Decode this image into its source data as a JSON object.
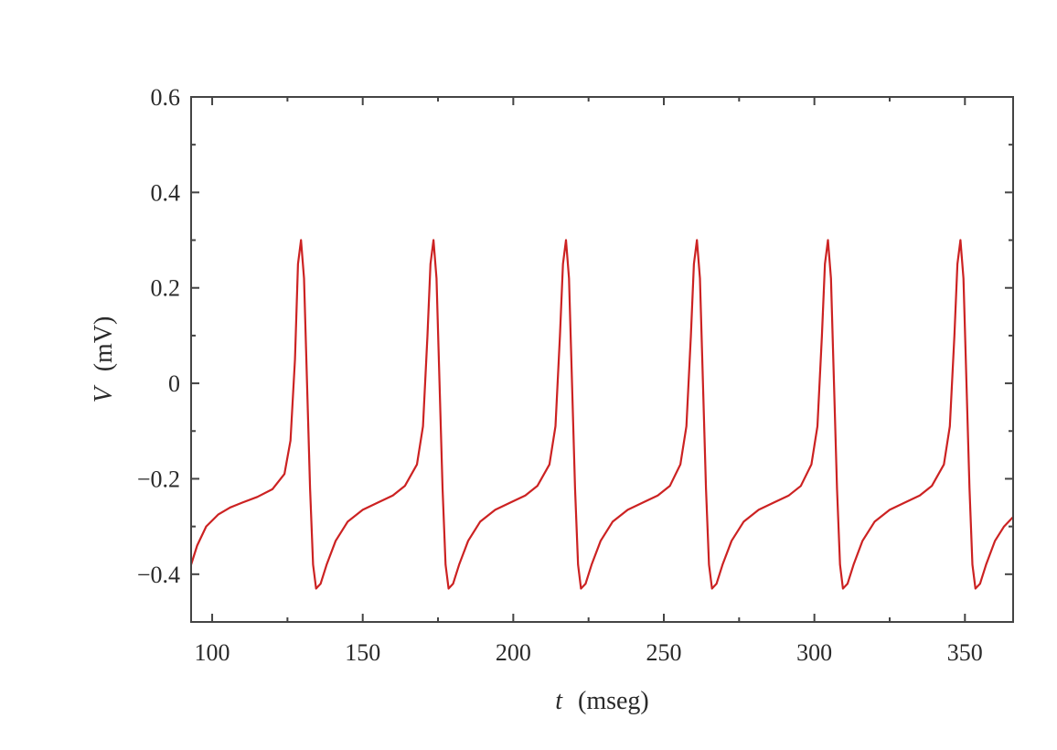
{
  "chart_data": {
    "type": "line",
    "title": "",
    "xlabel": {
      "var": "t",
      "unit": "(mseg)"
    },
    "ylabel": {
      "var": "V",
      "unit": "(mV)"
    },
    "xlim": [
      93,
      366
    ],
    "ylim": [
      -0.5,
      0.6
    ],
    "xticks": [
      100,
      150,
      200,
      250,
      300,
      350
    ],
    "xtick_labels": [
      "100",
      "150",
      "200",
      "250",
      "300",
      "350"
    ],
    "yticks": [
      -0.4,
      -0.2,
      0,
      0.2,
      0.4,
      0.6
    ],
    "ytick_labels": [
      "−0.4",
      "−0.2",
      "0",
      "0.2",
      "0.4",
      "0.6"
    ],
    "grid": false,
    "colors": {
      "series": "#cc2222",
      "axes": "#444444"
    },
    "series": [
      {
        "x": [
          93,
          95,
          98,
          102,
          106,
          110,
          115,
          120,
          124,
          126,
          127.5,
          128.5,
          129.5,
          130.5,
          131.5,
          132.5,
          133.5,
          134.5,
          136,
          138,
          141,
          145,
          150,
          155,
          160,
          164,
          168,
          170,
          171.5,
          172.5,
          173.5,
          174.5,
          175.5,
          176.5,
          177.5,
          178.5,
          180,
          182,
          185,
          189,
          194,
          199,
          204,
          208,
          212,
          214,
          215.5,
          216.5,
          217.5,
          218.5,
          219.5,
          220.5,
          221.5,
          222.5,
          224,
          226,
          229,
          233,
          238,
          243,
          248,
          252,
          255.5,
          257.5,
          259,
          260,
          261,
          262,
          263,
          264,
          265,
          266,
          267.5,
          269.5,
          272.5,
          276.5,
          281.5,
          286.5,
          291.5,
          295.5,
          299,
          301,
          302.5,
          303.5,
          304.5,
          305.5,
          306.5,
          307.5,
          308.5,
          309.5,
          311,
          313,
          316,
          320,
          325,
          330,
          335,
          339,
          343,
          345,
          346.5,
          347.5,
          348.5,
          349.5,
          350.5,
          351.5,
          352.5,
          353.5,
          355,
          357,
          360,
          363,
          366
        ],
        "y": [
          -0.38,
          -0.34,
          -0.3,
          -0.275,
          -0.26,
          -0.25,
          -0.238,
          -0.222,
          -0.19,
          -0.12,
          0.05,
          0.25,
          0.3,
          0.22,
          0.0,
          -0.22,
          -0.38,
          -0.43,
          -0.42,
          -0.38,
          -0.33,
          -0.29,
          -0.265,
          -0.25,
          -0.235,
          -0.215,
          -0.17,
          -0.09,
          0.1,
          0.25,
          0.3,
          0.22,
          0.0,
          -0.22,
          -0.38,
          -0.43,
          -0.42,
          -0.38,
          -0.33,
          -0.29,
          -0.265,
          -0.25,
          -0.235,
          -0.215,
          -0.17,
          -0.09,
          0.1,
          0.25,
          0.3,
          0.22,
          0.0,
          -0.22,
          -0.38,
          -0.43,
          -0.42,
          -0.38,
          -0.33,
          -0.29,
          -0.265,
          -0.25,
          -0.235,
          -0.215,
          -0.17,
          -0.09,
          0.1,
          0.25,
          0.3,
          0.22,
          0.0,
          -0.22,
          -0.38,
          -0.43,
          -0.42,
          -0.38,
          -0.33,
          -0.29,
          -0.265,
          -0.25,
          -0.235,
          -0.215,
          -0.17,
          -0.09,
          0.1,
          0.25,
          0.3,
          0.22,
          0.0,
          -0.22,
          -0.38,
          -0.43,
          -0.42,
          -0.38,
          -0.33,
          -0.29,
          -0.265,
          -0.25,
          -0.235,
          -0.215,
          -0.17,
          -0.09,
          0.1,
          0.25,
          0.3,
          0.22,
          0.0,
          -0.22,
          -0.38,
          -0.43,
          -0.42,
          -0.38,
          -0.33,
          -0.3,
          -0.28
        ]
      }
    ]
  }
}
